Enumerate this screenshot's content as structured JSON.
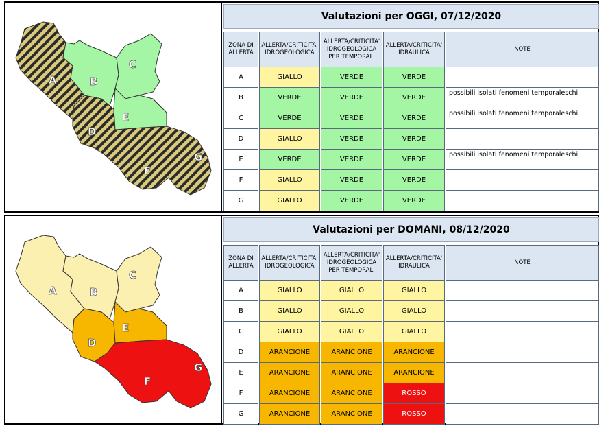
{
  "today": {
    "title": "Valutazioni per OGGI, 07/12/2020",
    "headers": [
      "ZONA DI ALLERTA",
      "ALLERTA/CRITICITA' IDROGEOLOGICA",
      "ALLERTA/CRITICITA' IDROGEOLOGICA PER TEMPORALI",
      "ALLERTA/CRITICITA' IDRAULICA",
      "NOTE"
    ],
    "rows": [
      {
        "zone": "A",
        "idro": "GIALLO",
        "temp": "VERDE",
        "idraulica": "VERDE",
        "note": ""
      },
      {
        "zone": "B",
        "idro": "VERDE",
        "temp": "VERDE",
        "idraulica": "VERDE",
        "note": "possibili isolati fenomeni temporaleschi"
      },
      {
        "zone": "C",
        "idro": "VERDE",
        "temp": "VERDE",
        "idraulica": "VERDE",
        "note": "possibili isolati fenomeni temporaleschi"
      },
      {
        "zone": "D",
        "idro": "GIALLO",
        "temp": "VERDE",
        "idraulica": "VERDE",
        "note": ""
      },
      {
        "zone": "E",
        "idro": "VERDE",
        "temp": "VERDE",
        "idraulica": "VERDE",
        "note": "possibili isolati fenomeni temporaleschi"
      },
      {
        "zone": "F",
        "idro": "GIALLO",
        "temp": "VERDE",
        "idraulica": "VERDE",
        "note": ""
      },
      {
        "zone": "G",
        "idro": "GIALLO",
        "temp": "VERDE",
        "idraulica": "VERDE",
        "note": ""
      }
    ],
    "map_labels": [
      "A",
      "B",
      "C",
      "D",
      "E",
      "F",
      "G"
    ]
  },
  "tomorrow": {
    "title": "Valutazioni per DOMANI, 08/12/2020",
    "headers": [
      "ZONA DI ALLERTA",
      "ALLERTA/CRITICITA' IDROGEOLOGICA",
      "ALLERTA/CRITICITA' IDROGEOLOGICA PER TEMPORALI",
      "ALLERTA/CRITICITA' IDRAULICA",
      "NOTE"
    ],
    "rows": [
      {
        "zone": "A",
        "idro": "GIALLO",
        "temp": "GIALLO",
        "idraulica": "GIALLO",
        "note": ""
      },
      {
        "zone": "B",
        "idro": "GIALLO",
        "temp": "GIALLO",
        "idraulica": "GIALLO",
        "note": ""
      },
      {
        "zone": "C",
        "idro": "GIALLO",
        "temp": "GIALLO",
        "idraulica": "GIALLO",
        "note": ""
      },
      {
        "zone": "D",
        "idro": "ARANCIONE",
        "temp": "ARANCIONE",
        "idraulica": "ARANCIONE",
        "note": ""
      },
      {
        "zone": "E",
        "idro": "ARANCIONE",
        "temp": "ARANCIONE",
        "idraulica": "ARANCIONE",
        "note": ""
      },
      {
        "zone": "F",
        "idro": "ARANCIONE",
        "temp": "ARANCIONE",
        "idraulica": "ROSSO",
        "note": ""
      },
      {
        "zone": "G",
        "idro": "ARANCIONE",
        "temp": "ARANCIONE",
        "idraulica": "ROSSO",
        "note": ""
      }
    ],
    "map_labels": [
      "A",
      "B",
      "C",
      "D",
      "E",
      "F",
      "G"
    ]
  },
  "colors": {
    "VERDE": "#a4f5a4",
    "GIALLO": "#fff5a0",
    "ARANCIONE": "#f7b700",
    "ROSSO": "#ee1111",
    "GIALLO_TOMORROW_MAP": "#fbf0b0"
  }
}
